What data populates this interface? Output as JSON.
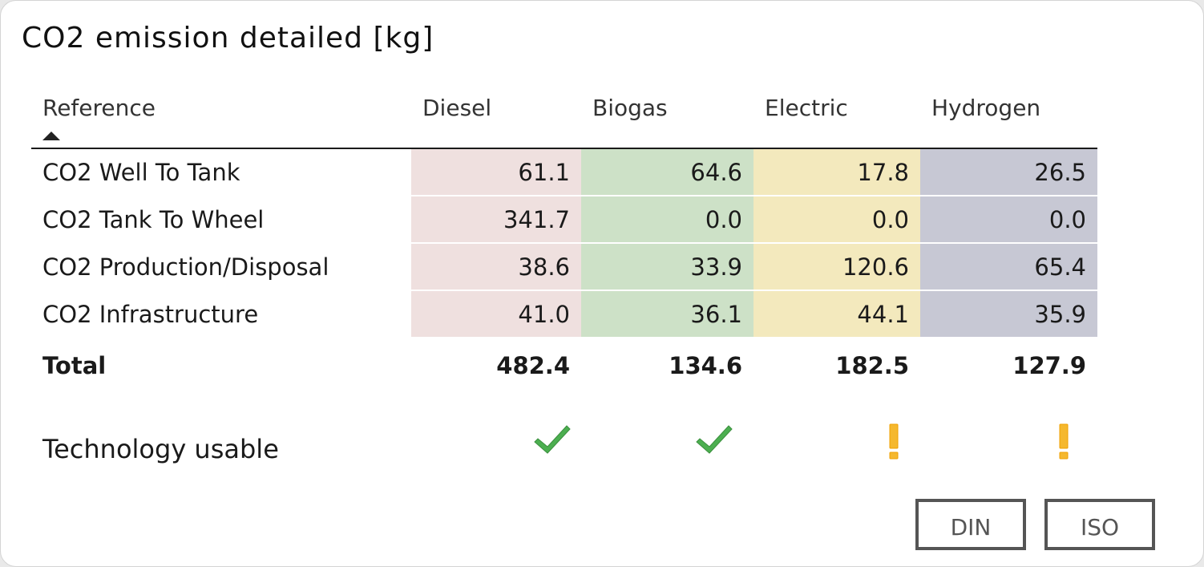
{
  "title": "CO2 emission detailed [kg]",
  "table": {
    "columns": [
      "Reference",
      "Diesel",
      "Biogas",
      "Electric",
      "Hydrogen"
    ],
    "column_colors": [
      "#ffffff",
      "#efe0df",
      "#cde1c7",
      "#f3e9bd",
      "#c7c8d4"
    ],
    "rows": [
      {
        "label": "CO2 Well To Tank",
        "values": [
          "61.1",
          "64.6",
          "17.8",
          "26.5"
        ]
      },
      {
        "label": "CO2 Tank To Wheel",
        "values": [
          "341.7",
          "0.0",
          "0.0",
          "0.0"
        ]
      },
      {
        "label": "CO2 Production/Disposal",
        "values": [
          "38.6",
          "33.9",
          "120.6",
          "65.4"
        ]
      },
      {
        "label": "CO2 Infrastructure",
        "values": [
          "41.0",
          "36.1",
          "44.1",
          "35.9"
        ]
      }
    ],
    "total": {
      "label": "Total",
      "values": [
        "482.4",
        "134.6",
        "182.5",
        "127.9"
      ]
    }
  },
  "technology": {
    "label": "Technology usable",
    "status": [
      {
        "icon": "checkmark-icon",
        "color": "#4caf50"
      },
      {
        "icon": "checkmark-icon",
        "color": "#4caf50"
      },
      {
        "icon": "warning-icon",
        "color": "#f5b82e"
      },
      {
        "icon": "warning-icon",
        "color": "#f5b82e"
      }
    ]
  },
  "buttons": {
    "din_label": "DIN",
    "iso_label": "ISO"
  }
}
